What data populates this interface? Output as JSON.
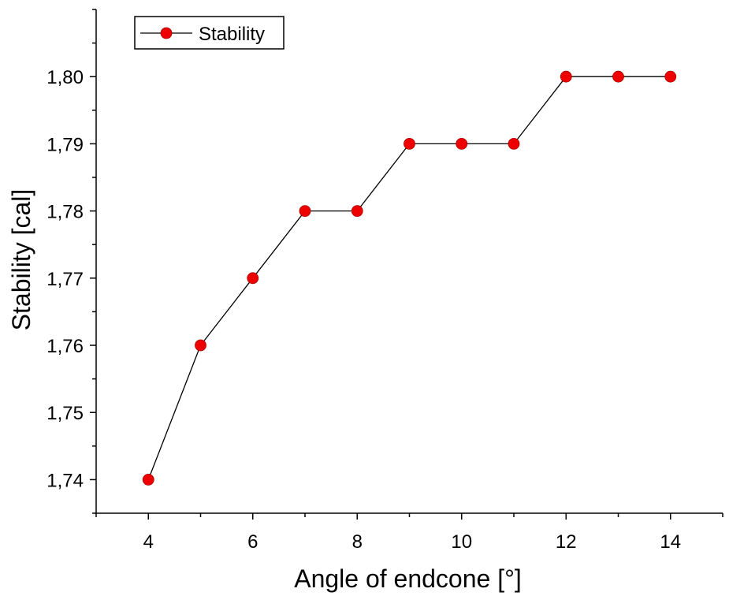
{
  "chart_data": {
    "type": "line",
    "x": [
      4,
      5,
      6,
      7,
      8,
      9,
      10,
      11,
      12,
      13,
      14
    ],
    "series": [
      {
        "name": "Stability",
        "values": [
          1.74,
          1.76,
          1.77,
          1.78,
          1.78,
          1.79,
          1.79,
          1.79,
          1.8,
          1.8,
          1.8
        ]
      }
    ],
    "xlabel": "Angle of endcone [°]",
    "ylabel": "Stability [cal]",
    "xlim": [
      3,
      15
    ],
    "ylim": [
      1.735,
      1.81
    ],
    "xticks": [
      4,
      6,
      8,
      10,
      12,
      14
    ],
    "yticks": [
      1.74,
      1.75,
      1.76,
      1.77,
      1.78,
      1.79,
      1.8
    ],
    "xtick_labels": [
      "4",
      "6",
      "8",
      "10",
      "12",
      "14"
    ],
    "ytick_labels": [
      "1,74",
      "1,75",
      "1,76",
      "1,77",
      "1,78",
      "1,79",
      "1,80"
    ],
    "grid": false,
    "legend_position": "top-left",
    "colors": {
      "marker": "#ee0000",
      "line": "#000000",
      "axis": "#000000"
    },
    "marker": "circle"
  }
}
